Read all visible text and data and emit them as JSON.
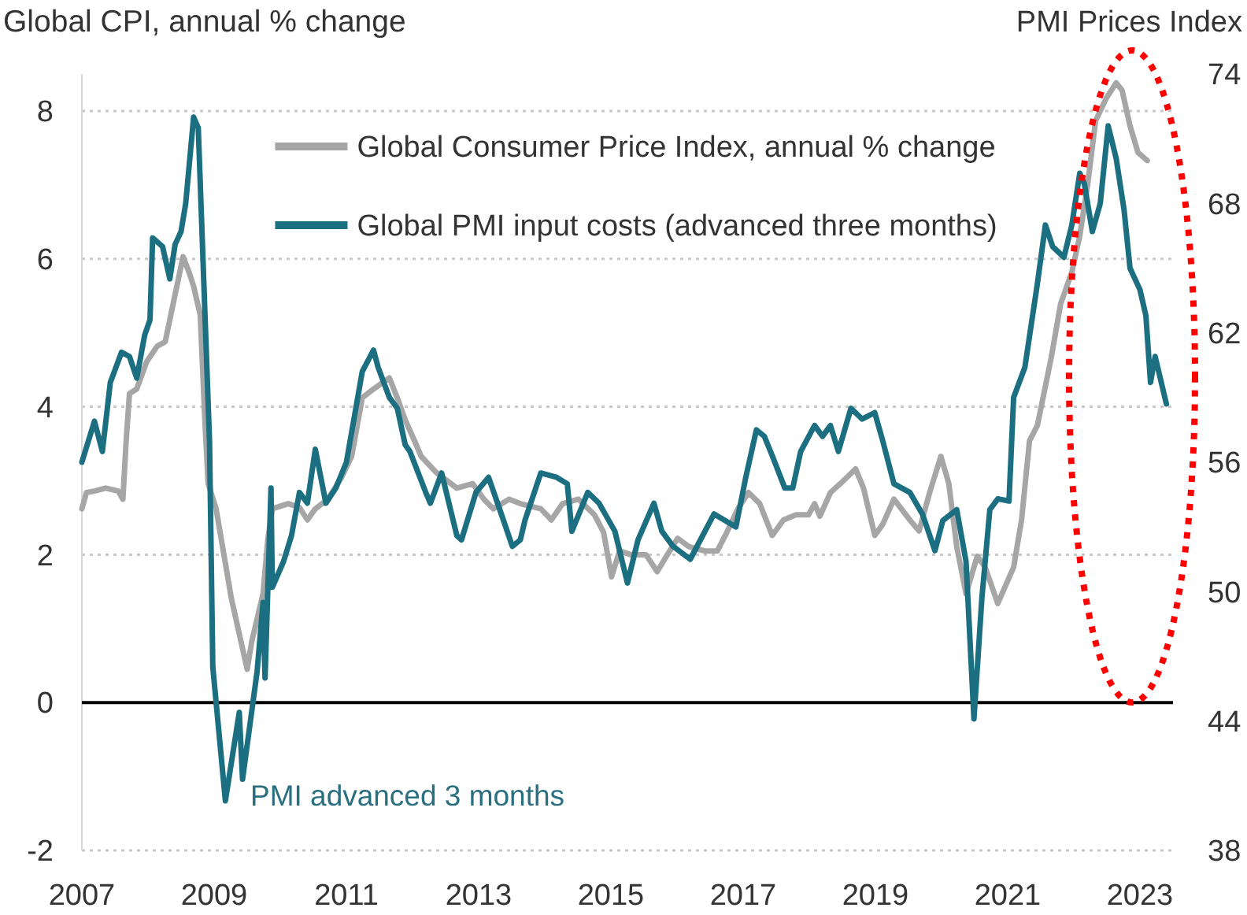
{
  "chart_data": {
    "type": "line",
    "ylabel": "Global CPI, annual % change",
    "y2label": "PMI Prices Index",
    "xlim": [
      2007,
      2023.5
    ],
    "xticks": [
      2007,
      2009,
      2011,
      2013,
      2015,
      2017,
      2019,
      2021,
      2023
    ],
    "ylim": [
      -2,
      8.5
    ],
    "yticks": [
      -2,
      0,
      2,
      4,
      6,
      8
    ],
    "y2lim": [
      38,
      74
    ],
    "y2ticks": [
      38,
      44,
      50,
      56,
      62,
      68,
      74
    ],
    "grid": "y",
    "legend": "top",
    "ref_lines": [
      {
        "axis": "y",
        "value": 0,
        "color": "#000000"
      }
    ],
    "annotations": [
      "PMI advanced 3 months"
    ],
    "series": [
      {
        "name": "Global Consumer Price Index, annual % change",
        "color": "#a6a6a6",
        "x": [
          2007.0,
          2007.07,
          2007.19,
          2007.36,
          2007.55,
          2007.62,
          2007.67,
          2007.72,
          2007.83,
          2007.98,
          2008.14,
          2008.26,
          2008.38,
          2008.53,
          2008.62,
          2008.69,
          2008.79,
          2008.86,
          2008.91,
          2009.03,
          2009.26,
          2009.5,
          2009.57,
          2009.74,
          2009.81,
          2009.88,
          2010.12,
          2010.29,
          2010.41,
          2010.53,
          2010.72,
          2010.93,
          2011.08,
          2011.24,
          2011.41,
          2011.65,
          2011.77,
          2011.89,
          2012.03,
          2012.13,
          2012.36,
          2012.67,
          2012.91,
          2013.08,
          2013.22,
          2013.46,
          2013.63,
          2013.94,
          2014.1,
          2014.27,
          2014.51,
          2014.75,
          2014.89,
          2015.01,
          2015.13,
          2015.3,
          2015.53,
          2015.7,
          2015.84,
          2016.01,
          2016.18,
          2016.42,
          2016.61,
          2016.73,
          2016.92,
          2017.08,
          2017.25,
          2017.44,
          2017.61,
          2017.8,
          2017.99,
          2018.08,
          2018.16,
          2018.32,
          2018.47,
          2018.7,
          2018.82,
          2018.99,
          2019.11,
          2019.28,
          2019.52,
          2019.66,
          2019.82,
          2019.99,
          2020.11,
          2020.23,
          2020.37,
          2020.54,
          2020.66,
          2020.85,
          2021.09,
          2021.21,
          2021.33,
          2021.45,
          2021.66,
          2021.8,
          2021.97,
          2022.09,
          2022.21,
          2022.33,
          2022.49,
          2022.64,
          2022.73,
          2022.85,
          2022.97,
          2023.11
        ],
        "values": [
          2.62,
          2.84,
          2.86,
          2.9,
          2.86,
          2.75,
          3.54,
          4.18,
          4.24,
          4.61,
          4.82,
          4.88,
          5.39,
          6.03,
          5.82,
          5.63,
          5.24,
          3.82,
          2.96,
          2.62,
          1.41,
          0.45,
          0.83,
          1.47,
          2.19,
          2.62,
          2.69,
          2.64,
          2.47,
          2.62,
          2.75,
          3.05,
          3.33,
          4.12,
          4.24,
          4.39,
          4.12,
          3.82,
          3.54,
          3.33,
          3.11,
          2.9,
          2.96,
          2.75,
          2.62,
          2.75,
          2.69,
          2.62,
          2.47,
          2.69,
          2.75,
          2.54,
          2.3,
          1.7,
          2.05,
          2.0,
          2.0,
          1.77,
          1.98,
          2.22,
          2.11,
          2.05,
          2.05,
          2.26,
          2.62,
          2.84,
          2.69,
          2.26,
          2.47,
          2.54,
          2.54,
          2.69,
          2.52,
          2.84,
          2.96,
          3.16,
          2.9,
          2.26,
          2.41,
          2.75,
          2.47,
          2.32,
          2.84,
          3.33,
          2.96,
          2.11,
          1.47,
          1.98,
          1.83,
          1.34,
          1.83,
          2.47,
          3.54,
          3.75,
          4.67,
          5.39,
          5.82,
          6.31,
          7.01,
          7.87,
          8.17,
          8.38,
          8.28,
          7.8,
          7.44,
          7.33
        ]
      },
      {
        "name": "Global PMI input costs (advanced three months)",
        "color": "#1b6f80",
        "axis": "y2",
        "x": [
          2007.0,
          2007.19,
          2007.31,
          2007.43,
          2007.6,
          2007.72,
          2007.83,
          2007.95,
          2008.03,
          2008.07,
          2008.22,
          2008.33,
          2008.41,
          2008.5,
          2008.57,
          2008.69,
          2008.76,
          2008.93,
          2008.98,
          2009.17,
          2009.38,
          2009.43,
          2009.65,
          2009.74,
          2009.77,
          2009.86,
          2009.88,
          2010.05,
          2010.17,
          2010.29,
          2010.41,
          2010.53,
          2010.69,
          2010.84,
          2011.0,
          2011.24,
          2011.41,
          2011.48,
          2011.65,
          2011.77,
          2011.89,
          2011.96,
          2012.2,
          2012.27,
          2012.44,
          2012.67,
          2012.74,
          2012.96,
          2013.15,
          2013.32,
          2013.51,
          2013.63,
          2013.7,
          2013.94,
          2014.18,
          2014.34,
          2014.41,
          2014.65,
          2014.82,
          2015.06,
          2015.25,
          2015.41,
          2015.65,
          2015.77,
          2015.94,
          2016.2,
          2016.56,
          2016.89,
          2017.04,
          2017.2,
          2017.32,
          2017.44,
          2017.63,
          2017.75,
          2017.87,
          2018.08,
          2018.2,
          2018.32,
          2018.44,
          2018.63,
          2018.8,
          2018.99,
          2019.11,
          2019.28,
          2019.52,
          2019.71,
          2019.9,
          2020.02,
          2020.23,
          2020.37,
          2020.49,
          2020.61,
          2020.73,
          2020.85,
          2021.02,
          2021.09,
          2021.26,
          2021.45,
          2021.57,
          2021.68,
          2021.85,
          2021.97,
          2022.09,
          2022.16,
          2022.28,
          2022.4,
          2022.52,
          2022.64,
          2022.76,
          2022.85,
          2023.0,
          2023.09,
          2023.16,
          2023.23,
          2023.4
        ],
        "values": [
          56.0,
          57.9,
          56.5,
          59.7,
          61.1,
          60.9,
          59.9,
          61.9,
          62.6,
          66.4,
          66.0,
          64.5,
          66.1,
          66.7,
          68.0,
          72.0,
          71.5,
          57.0,
          46.5,
          40.3,
          44.4,
          41.3,
          46.3,
          49.5,
          46.0,
          54.8,
          50.2,
          51.4,
          52.6,
          54.6,
          54.1,
          56.6,
          54.1,
          54.8,
          56.0,
          60.2,
          61.2,
          60.4,
          59.0,
          58.5,
          56.8,
          56.5,
          54.6,
          54.1,
          55.5,
          52.6,
          52.4,
          54.6,
          55.3,
          53.8,
          52.1,
          52.4,
          53.3,
          55.5,
          55.3,
          55.0,
          52.8,
          54.6,
          54.1,
          52.8,
          50.4,
          52.4,
          54.1,
          52.8,
          52.1,
          51.5,
          53.6,
          53.0,
          55.3,
          57.5,
          57.2,
          56.3,
          54.8,
          54.8,
          56.5,
          57.7,
          57.2,
          57.7,
          56.5,
          58.5,
          58.0,
          58.3,
          57.0,
          55.0,
          54.6,
          53.6,
          51.9,
          53.3,
          53.8,
          51.4,
          44.1,
          49.7,
          53.8,
          54.3,
          54.2,
          59.0,
          60.4,
          64.3,
          67.0,
          66.0,
          65.5,
          67.0,
          69.4,
          68.9,
          66.7,
          68.0,
          71.6,
          70.1,
          67.7,
          65.0,
          64.0,
          62.8,
          59.7,
          60.9,
          58.7
        ]
      }
    ]
  }
}
